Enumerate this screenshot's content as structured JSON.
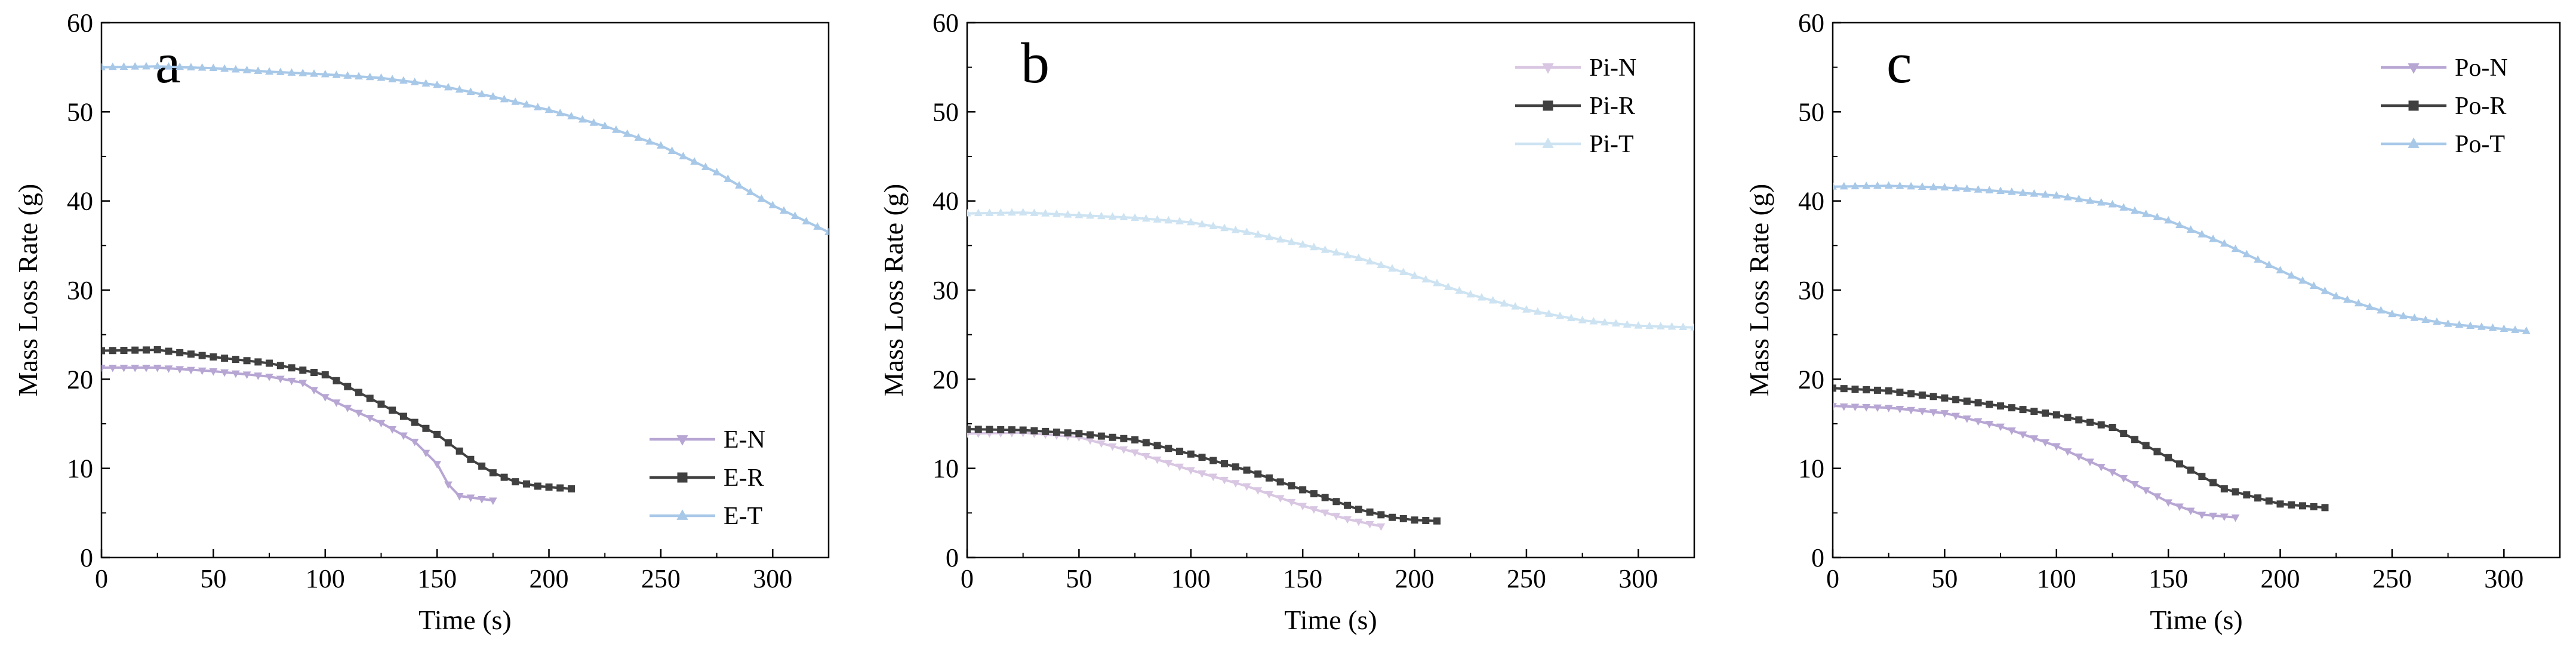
{
  "chart_data": [
    {
      "type": "line",
      "panel_label": "a",
      "xlabel": "Time (s)",
      "ylabel": "Mass Loss Rate (g)",
      "xlim": [
        0,
        325
      ],
      "ylim": [
        0,
        60
      ],
      "xticks": [
        0,
        50,
        100,
        150,
        200,
        250,
        300
      ],
      "yticks": [
        0,
        10,
        20,
        30,
        40,
        50,
        60
      ],
      "legend_position": "bottom-right",
      "series": [
        {
          "name": "E-N",
          "color": "#b7a6d3",
          "marker": "triangle-down",
          "x": [
            0,
            25,
            50,
            75,
            90,
            100,
            110,
            125,
            140,
            150,
            155,
            160,
            175
          ],
          "y": [
            21.3,
            21.3,
            20.9,
            20.3,
            19.6,
            18.0,
            16.8,
            15.1,
            13.0,
            10.5,
            8.2,
            6.9,
            6.4
          ]
        },
        {
          "name": "E-R",
          "color": "#404040",
          "marker": "square",
          "x": [
            0,
            25,
            50,
            75,
            100,
            125,
            150,
            165,
            175,
            185,
            195,
            210
          ],
          "y": [
            23.2,
            23.3,
            22.5,
            21.8,
            20.5,
            17.2,
            13.8,
            11.0,
            9.5,
            8.5,
            8.0,
            7.7
          ]
        },
        {
          "name": "E-T",
          "color": "#a8c8e8",
          "marker": "triangle-up",
          "x": [
            0,
            25,
            50,
            75,
            100,
            125,
            150,
            175,
            200,
            225,
            250,
            275,
            300,
            325
          ],
          "y": [
            55.0,
            55.1,
            54.9,
            54.5,
            54.2,
            53.8,
            53.0,
            51.7,
            50.2,
            48.4,
            46.2,
            43.2,
            39.5,
            36.5
          ]
        }
      ]
    },
    {
      "type": "line",
      "panel_label": "b",
      "xlabel": "Time (s)",
      "ylabel": "Mass Loss Rate (g)",
      "xlim": [
        0,
        325
      ],
      "ylim": [
        0,
        60
      ],
      "xticks": [
        0,
        50,
        100,
        150,
        200,
        250,
        300
      ],
      "yticks": [
        0,
        10,
        20,
        30,
        40,
        50,
        60
      ],
      "legend_position": "top-right",
      "series": [
        {
          "name": "Pi-N",
          "color": "#d8c6e2",
          "marker": "triangle-down",
          "x": [
            0,
            25,
            50,
            75,
            100,
            125,
            150,
            170,
            185
          ],
          "y": [
            13.9,
            14.0,
            13.5,
            11.8,
            9.8,
            8.0,
            5.8,
            4.3,
            3.5
          ]
        },
        {
          "name": "Pi-R",
          "color": "#404040",
          "marker": "square",
          "x": [
            0,
            25,
            50,
            75,
            100,
            125,
            150,
            175,
            190,
            200,
            210
          ],
          "y": [
            14.4,
            14.3,
            13.9,
            13.2,
            11.6,
            9.8,
            7.6,
            5.4,
            4.5,
            4.2,
            4.1
          ]
        },
        {
          "name": "Pi-T",
          "color": "#cde3f2",
          "marker": "triangle-up",
          "x": [
            0,
            25,
            50,
            75,
            100,
            125,
            150,
            175,
            200,
            225,
            250,
            275,
            300,
            325
          ],
          "y": [
            38.6,
            38.7,
            38.4,
            38.1,
            37.6,
            36.5,
            35.1,
            33.6,
            31.6,
            29.5,
            27.8,
            26.6,
            26.0,
            25.8
          ]
        }
      ]
    },
    {
      "type": "line",
      "panel_label": "c",
      "xlabel": "Time (s)",
      "ylabel": "Mass Loss Rate (g)",
      "xlim": [
        0,
        325
      ],
      "ylim": [
        0,
        60
      ],
      "xticks": [
        0,
        50,
        100,
        150,
        200,
        250,
        300
      ],
      "yticks": [
        0,
        10,
        20,
        30,
        40,
        50,
        60
      ],
      "legend_position": "top-right",
      "series": [
        {
          "name": "Po-N",
          "color": "#b7a6d3",
          "marker": "triangle-down",
          "x": [
            0,
            25,
            50,
            75,
            100,
            125,
            150,
            165,
            180
          ],
          "y": [
            17.0,
            16.8,
            16.2,
            14.7,
            12.5,
            9.6,
            6.2,
            4.8,
            4.5
          ]
        },
        {
          "name": "Po-R",
          "color": "#404040",
          "marker": "square",
          "x": [
            0,
            25,
            50,
            75,
            100,
            125,
            150,
            175,
            200,
            220
          ],
          "y": [
            19.0,
            18.7,
            17.9,
            17.0,
            16.0,
            14.6,
            11.2,
            7.7,
            6.0,
            5.6
          ]
        },
        {
          "name": "Po-T",
          "color": "#a8c8e8",
          "marker": "triangle-up",
          "x": [
            0,
            25,
            50,
            75,
            100,
            125,
            150,
            175,
            200,
            225,
            250,
            275,
            310
          ],
          "y": [
            41.6,
            41.7,
            41.5,
            41.1,
            40.6,
            39.6,
            37.8,
            35.2,
            32.2,
            29.3,
            27.3,
            26.2,
            25.4
          ]
        }
      ]
    }
  ]
}
